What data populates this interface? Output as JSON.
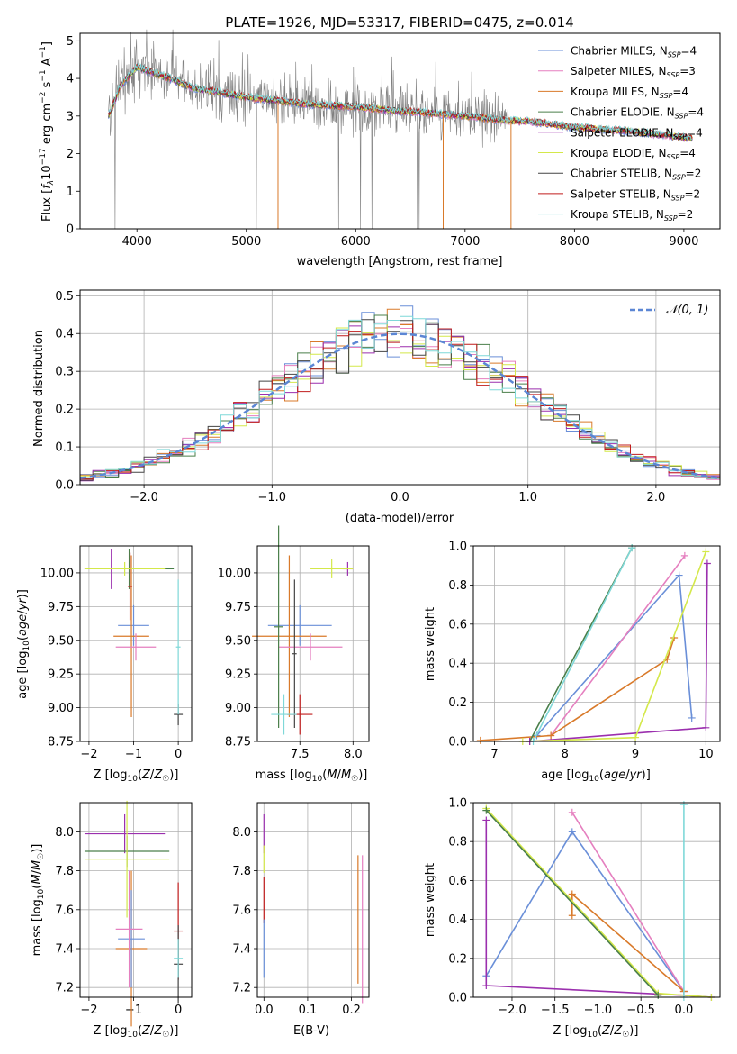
{
  "chart_data": [
    {
      "id": "spectrum",
      "type": "line",
      "title": "PLATE=1926, MJD=53317, FIBERID=0475, z=0.014",
      "xlabel": "wavelength [Angstrom, rest frame]",
      "ylabel": "Flux [f_λ10^-17 erg cm^-2 s^-1 A^-1]",
      "xlim": [
        3480,
        9330
      ],
      "ylim": [
        0,
        5.2
      ],
      "xticks": [
        4000,
        5000,
        6000,
        7000,
        8000,
        9000
      ],
      "yticks": [
        0,
        1,
        2,
        3,
        4,
        5
      ],
      "grid": false,
      "legend_position": "top-right",
      "data_wavelength_range": [
        3740,
        9080
      ],
      "data_flux_points": [
        [
          3740,
          3.0
        ],
        [
          3850,
          3.8
        ],
        [
          4000,
          4.3
        ],
        [
          4100,
          4.2
        ],
        [
          4300,
          4.0
        ],
        [
          4500,
          3.75
        ],
        [
          4800,
          3.6
        ],
        [
          5000,
          3.5
        ],
        [
          5300,
          3.4
        ],
        [
          5600,
          3.3
        ],
        [
          6000,
          3.25
        ],
        [
          6300,
          3.15
        ],
        [
          6600,
          3.1
        ],
        [
          7000,
          3.0
        ],
        [
          7300,
          2.9
        ],
        [
          7600,
          2.85
        ],
        [
          8000,
          2.7
        ],
        [
          8500,
          2.6
        ],
        [
          9080,
          2.4
        ]
      ],
      "legend": [
        {
          "name": "Chabrier MILES, N_SSP=4",
          "color": "#6a8fd8"
        },
        {
          "name": "Salpeter MILES, N_SSP=3",
          "color": "#e57fbf"
        },
        {
          "name": "Kroupa MILES, N_SSP=4",
          "color": "#d97a2a"
        },
        {
          "name": "Chabrier ELODIE, N_SSP=4",
          "color": "#4a7f4a"
        },
        {
          "name": "Salpeter ELODIE, N_SSP=4",
          "color": "#9b2fae"
        },
        {
          "name": "Kroupa ELODIE, N_SSP=4",
          "color": "#d4e84a"
        },
        {
          "name": "Chabrier STELIB, N_SSP=2",
          "color": "#444444"
        },
        {
          "name": "Salpeter STELIB, N_SSP=2",
          "color": "#c01c1c"
        },
        {
          "name": "Kroupa STELIB, N_SSP=2",
          "color": "#7fd8d8"
        }
      ]
    },
    {
      "id": "residuals",
      "type": "line",
      "xlabel": "(data-model)/error",
      "ylabel": "Normed distribution",
      "xlim": [
        -2.5,
        2.5
      ],
      "ylim": [
        0,
        0.515
      ],
      "xticks": [
        -2,
        -1,
        0,
        1,
        2
      ],
      "yticks": [
        0.0,
        0.1,
        0.2,
        0.3,
        0.4,
        0.5
      ],
      "grid": true,
      "legend_position": "top-right",
      "reference_curve": {
        "name": "𝒩(0, 1)",
        "mean": 0,
        "sd": 1,
        "color": "#5b86d4"
      },
      "histogram_bin_width": 0.1,
      "series_colors": [
        "#6a8fd8",
        "#e57fbf",
        "#d97a2a",
        "#4a7f4a",
        "#9b2fae",
        "#d4e84a",
        "#444444",
        "#c01c1c",
        "#7fd8d8"
      ]
    },
    {
      "id": "age-vs-Z",
      "type": "scatter",
      "xlabel": "Z [log10(Z/Z☉)]",
      "ylabel": "age  [log10(age/yr)]",
      "xlim": [
        -2.2,
        0.3
      ],
      "ylim": [
        8.75,
        10.2
      ],
      "xticks": [
        -2,
        -1,
        0
      ],
      "yticks": [
        8.75,
        9.0,
        9.25,
        9.5,
        9.75,
        10.0
      ],
      "grid": true,
      "errorbars": [
        {
          "color": "#6a8fd8",
          "x": -1.0,
          "y": 9.61,
          "xerr": 0.35,
          "yerr": 0.15
        },
        {
          "color": "#d97a2a",
          "x": -1.05,
          "y": 9.53,
          "xerr": 0.4,
          "yerr": 0.6
        },
        {
          "color": "#e57fbf",
          "x": -0.95,
          "y": 9.45,
          "xerr": 0.45,
          "yerr": 0.1
        },
        {
          "color": "#4a7f4a",
          "x": -1.1,
          "y": 10.03,
          "xerr": 1.0,
          "yerr": 0.15
        },
        {
          "color": "#9b2fae",
          "x": -1.5,
          "y": 10.03,
          "xerr": 0.6,
          "yerr": 0.15
        },
        {
          "color": "#d4e84a",
          "x": -1.2,
          "y": 10.03,
          "xerr": 0.9,
          "yerr": 0.05
        },
        {
          "color": "#444444",
          "x": 0.0,
          "y": 8.95,
          "xerr": 0.1,
          "yerr": 0.08
        },
        {
          "color": "#c01c1c",
          "x": -1.08,
          "y": 9.9,
          "xerr": 0.05,
          "yerr": 0.25
        },
        {
          "color": "#7fd8d8",
          "x": 0.0,
          "y": 9.45,
          "xerr": 0.05,
          "yerr": 0.5
        }
      ]
    },
    {
      "id": "age-vs-mass",
      "type": "scatter",
      "xlabel": "mass [log10(M/M☉)]",
      "ylabel": "",
      "xlim": [
        7.1,
        8.15
      ],
      "ylim": [
        8.75,
        10.2
      ],
      "xticks": [
        7.5,
        8.0
      ],
      "yticks": [
        8.75,
        9.0,
        9.25,
        9.5,
        9.75,
        10.0
      ],
      "grid": true,
      "errorbars": [
        {
          "color": "#6a8fd8",
          "x": 7.5,
          "y": 9.61,
          "xerr": 0.3,
          "yerr": 0.15
        },
        {
          "color": "#d97a2a",
          "x": 7.4,
          "y": 9.53,
          "xerr": 0.35,
          "yerr": 0.6
        },
        {
          "color": "#e57fbf",
          "x": 7.6,
          "y": 9.45,
          "xerr": 0.3,
          "yerr": 0.1
        },
        {
          "color": "#4a7f4a",
          "x": 7.3,
          "y": 9.6,
          "xerr": 0.04,
          "yerr": 0.75
        },
        {
          "color": "#9b2fae",
          "x": 7.95,
          "y": 10.03,
          "xerr": 0.05,
          "yerr": 0.05
        },
        {
          "color": "#d4e84a",
          "x": 7.8,
          "y": 10.03,
          "xerr": 0.2,
          "yerr": 0.07
        },
        {
          "color": "#444444",
          "x": 7.45,
          "y": 9.4,
          "xerr": 0.02,
          "yerr": 0.55
        },
        {
          "color": "#c01c1c",
          "x": 7.5,
          "y": 8.95,
          "xerr": 0.12,
          "yerr": 0.15
        },
        {
          "color": "#7fd8d8",
          "x": 7.35,
          "y": 8.95,
          "xerr": 0.12,
          "yerr": 0.15
        }
      ]
    },
    {
      "id": "weight-vs-age",
      "type": "line",
      "xlabel": "age  [log10(age/yr)]",
      "ylabel": "mass weight",
      "xlim": [
        6.7,
        10.2
      ],
      "ylim": [
        0,
        1.0
      ],
      "xticks": [
        7,
        8,
        9,
        10
      ],
      "yticks": [
        0.0,
        0.2,
        0.4,
        0.6,
        0.8,
        1.0
      ],
      "grid": true,
      "series": [
        {
          "color": "#6a8fd8",
          "x": [
            7.6,
            9.62,
            9.8
          ],
          "y": [
            0.03,
            0.85,
            0.12
          ]
        },
        {
          "color": "#e57fbf",
          "x": [
            7.8,
            9.7
          ],
          "y": [
            0.03,
            0.95
          ]
        },
        {
          "color": "#d97a2a",
          "x": [
            6.8,
            7.8,
            9.45,
            9.55
          ],
          "y": [
            0.005,
            0.03,
            0.42,
            0.53
          ]
        },
        {
          "color": "#4a7f4a",
          "x": [
            7.5,
            8.95
          ],
          "y": [
            0.0,
            0.99
          ]
        },
        {
          "color": "#9b2fae",
          "x": [
            7.5,
            10.0,
            10.02
          ],
          "y": [
            0.0,
            0.07,
            0.91
          ]
        },
        {
          "color": "#d4e84a",
          "x": [
            7.4,
            9.0,
            10.0
          ],
          "y": [
            0.0,
            0.02,
            0.97
          ]
        },
        {
          "color": "#7fd8d8",
          "x": [
            7.55,
            8.95
          ],
          "y": [
            0.0,
            0.99
          ]
        }
      ]
    },
    {
      "id": "mass-vs-Z",
      "type": "scatter",
      "xlabel": "Z [log10(Z/Z☉)]",
      "ylabel": "mass [log10(M/M☉)]",
      "xlim": [
        -2.2,
        0.3
      ],
      "ylim": [
        7.15,
        8.15
      ],
      "xticks": [
        -2,
        -1,
        0
      ],
      "yticks": [
        7.2,
        7.4,
        7.6,
        7.8,
        8.0
      ],
      "grid": true,
      "errorbars": [
        {
          "color": "#9b2fae",
          "x": -1.2,
          "y": 7.99,
          "xerr": 0.9,
          "yerr": 0.1
        },
        {
          "color": "#4a7f4a",
          "x": -1.15,
          "y": 7.9,
          "xerr": 0.95,
          "yerr": 0.08
        },
        {
          "color": "#d4e84a",
          "x": -1.15,
          "y": 7.86,
          "xerr": 0.95,
          "yerr": 0.3
        },
        {
          "color": "#d97a2a",
          "x": -1.05,
          "y": 7.4,
          "xerr": 0.35,
          "yerr": 0.4
        },
        {
          "color": "#6a8fd8",
          "x": -1.05,
          "y": 7.45,
          "xerr": 0.3,
          "yerr": 0.25
        },
        {
          "color": "#e57fbf",
          "x": -1.1,
          "y": 7.5,
          "xerr": 0.3,
          "yerr": 0.3
        },
        {
          "color": "#c01c1c",
          "x": 0.0,
          "y": 7.49,
          "xerr": 0.1,
          "yerr": 0.25
        },
        {
          "color": "#444444",
          "x": 0.0,
          "y": 7.32,
          "xerr": 0.1,
          "yerr": 0.2
        },
        {
          "color": "#7fd8d8",
          "x": 0.0,
          "y": 7.35,
          "xerr": 0.1,
          "yerr": 0.1
        }
      ]
    },
    {
      "id": "mass-vs-EBV",
      "type": "scatter",
      "xlabel": "E(B-V)",
      "ylabel": "",
      "xlim": [
        -0.015,
        0.24
      ],
      "ylim": [
        7.15,
        8.15
      ],
      "xticks": [
        0.0,
        0.1,
        0.2
      ],
      "yticks": [
        7.2,
        7.4,
        7.6,
        7.8,
        8.0
      ],
      "grid": true,
      "errorbars": [
        {
          "color": "#9b2fae",
          "x": 0.0,
          "y": 7.99,
          "xerr": 0,
          "yerr": 0.1
        },
        {
          "color": "#d4e84a",
          "x": 0.0,
          "y": 7.86,
          "xerr": 0,
          "yerr": 0.07
        },
        {
          "color": "#c01c1c",
          "x": 0.0,
          "y": 7.65,
          "xerr": 0,
          "yerr": 0.12
        },
        {
          "color": "#6a8fd8",
          "x": 0.0,
          "y": 7.4,
          "xerr": 0,
          "yerr": 0.15
        },
        {
          "color": "#e57fbf",
          "x": 0.225,
          "y": 7.5,
          "xerr": 0,
          "yerr": 0.38
        },
        {
          "color": "#d97a2a",
          "x": 0.215,
          "y": 7.55,
          "xerr": 0,
          "yerr": 0.33
        }
      ]
    },
    {
      "id": "weight-vs-Z",
      "type": "line",
      "xlabel": "Z [log10(Z/Z☉)]",
      "ylabel": "mass weight",
      "xlim": [
        -2.45,
        0.42
      ],
      "ylim": [
        0,
        1.0
      ],
      "xticks": [
        -2.0,
        -1.5,
        -1.0,
        -0.5,
        0.0
      ],
      "yticks": [
        0.0,
        0.2,
        0.4,
        0.6,
        0.8,
        1.0
      ],
      "grid": true,
      "series": [
        {
          "color": "#6a8fd8",
          "x": [
            -2.3,
            -1.3,
            0.0
          ],
          "y": [
            0.11,
            0.85,
            0.03
          ]
        },
        {
          "color": "#e57fbf",
          "x": [
            -1.3,
            0.0
          ],
          "y": [
            0.95,
            0.03
          ]
        },
        {
          "color": "#d97a2a",
          "x": [
            -1.3,
            -1.3,
            0.0
          ],
          "y": [
            0.42,
            0.53,
            0.03
          ]
        },
        {
          "color": "#9b2fae",
          "x": [
            -2.3,
            -2.3,
            0.0,
            0.32
          ],
          "y": [
            0.91,
            0.06,
            0.01,
            0.0
          ]
        },
        {
          "color": "#d4e84a",
          "x": [
            -2.3,
            -0.3,
            0.32
          ],
          "y": [
            0.97,
            0.02,
            0.0
          ]
        },
        {
          "color": "#4a7f4a",
          "x": [
            -2.3,
            -0.3
          ],
          "y": [
            0.96,
            0.01
          ]
        },
        {
          "color": "#7fd8d8",
          "x": [
            0.0,
            0.0
          ],
          "y": [
            0.0,
            0.99
          ]
        }
      ]
    }
  ]
}
